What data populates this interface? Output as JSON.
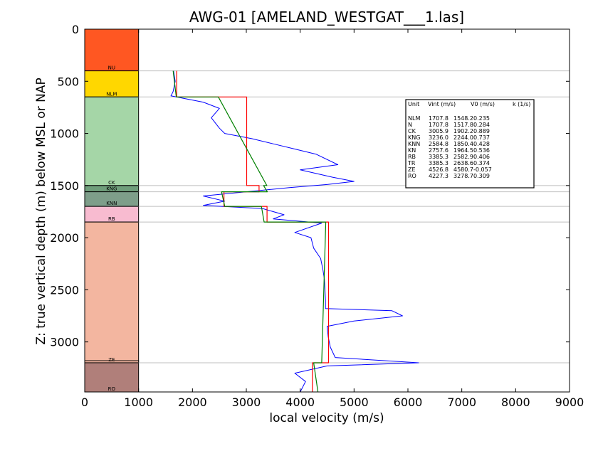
{
  "chart_data": {
    "type": "line",
    "title": "AWG-01 [AMELAND_WESTGAT___1.las]",
    "xlabel": "local velocity (m/s)",
    "ylabel": "Z: true vertical depth (m) below MSL or NAP",
    "xlim": [
      0,
      9000
    ],
    "ylim": [
      3480,
      0
    ],
    "x_ticks": [
      "0",
      "1000",
      "2000",
      "3000",
      "4000",
      "5000",
      "6000",
      "7000",
      "8000",
      "9000"
    ],
    "y_ticks": [
      "0",
      "500",
      "1000",
      "1500",
      "2000",
      "2500",
      "3000"
    ],
    "grid": "horizontal lines at formation boundaries",
    "legend_position": "top-right",
    "colors": {
      "log_line": "#0000ff",
      "interval_velocity": "#ff0000",
      "v0k_model": "#008000",
      "boundary_line": "#bfbfbf"
    },
    "formations": [
      {
        "label": "NU",
        "top": 0,
        "base": 400,
        "color": "#ff5722"
      },
      {
        "label": "NLM",
        "top": 400,
        "base": 650,
        "color": "#ffd700"
      },
      {
        "label": "CK",
        "top": 650,
        "base": 1500,
        "color": "#a5d6a7"
      },
      {
        "label": "KNG",
        "top": 1500,
        "base": 1560,
        "color": "#6f9e7b"
      },
      {
        "label": "KNN",
        "top": 1560,
        "base": 1700,
        "color": "#7e9e8a"
      },
      {
        "label": "RB",
        "top": 1700,
        "base": 1850,
        "color": "#f8bbd0"
      },
      {
        "label": "",
        "top": 1850,
        "base": 3200,
        "color": "#f3b6a0"
      },
      {
        "label": "ZE",
        "top": 3180,
        "base": 3200,
        "color": "#f3b6a0"
      },
      {
        "label": "RO",
        "top": 3200,
        "base": 3480,
        "color": "#b07f7a"
      }
    ],
    "boundary_depths": [
      400,
      650,
      1500,
      1560,
      1700,
      1850,
      3200
    ],
    "legend": {
      "header": [
        "Unit",
        "Vint (m/s)",
        "V0 (m/s)",
        "k (1/s)"
      ],
      "rows": [
        [
          "NLM",
          "1707.8",
          "1548.2",
          "0.235"
        ],
        [
          "N",
          "1707.8",
          "1517.8",
          "0.284"
        ],
        [
          "CK",
          "3005.9",
          "1902.2",
          "0.889"
        ],
        [
          "KNG",
          "3236.0",
          "2244.0",
          "0.737"
        ],
        [
          "KNN",
          "2584.8",
          "1850.4",
          "0.428"
        ],
        [
          "KN",
          "2757.6",
          "1964.5",
          "0.536"
        ],
        [
          "RB",
          "3385.3",
          "2582.9",
          "0.406"
        ],
        [
          "TR",
          "3385.3",
          "2638.6",
          "0.374"
        ],
        [
          "ZE",
          "4526.8",
          "4580.7",
          "-0.057"
        ],
        [
          "RO",
          "4227.3",
          "3278.7",
          "0.309"
        ]
      ]
    },
    "series": [
      {
        "color": "#0000ff",
        "points": [
          [
            1650,
            400
          ],
          [
            1680,
            500
          ],
          [
            1640,
            600
          ],
          [
            1600,
            640
          ],
          [
            1800,
            660
          ],
          [
            2200,
            700
          ],
          [
            2500,
            760
          ],
          [
            2350,
            850
          ],
          [
            2500,
            950
          ],
          [
            2600,
            1000
          ],
          [
            3100,
            1050
          ],
          [
            3500,
            1100
          ],
          [
            3900,
            1150
          ],
          [
            4300,
            1200
          ],
          [
            4700,
            1300
          ],
          [
            4000,
            1350
          ],
          [
            4600,
            1420
          ],
          [
            5000,
            1460
          ],
          [
            4500,
            1490
          ],
          [
            3800,
            1520
          ],
          [
            3000,
            1560
          ],
          [
            2200,
            1600
          ],
          [
            2600,
            1650
          ],
          [
            2200,
            1690
          ],
          [
            3300,
            1720
          ],
          [
            3700,
            1780
          ],
          [
            3500,
            1820
          ],
          [
            4400,
            1860
          ],
          [
            3900,
            1950
          ],
          [
            4200,
            2000
          ],
          [
            4250,
            2100
          ],
          [
            4380,
            2200
          ],
          [
            4420,
            2300
          ],
          [
            4450,
            2400
          ],
          [
            4460,
            2500
          ],
          [
            4470,
            2600
          ],
          [
            4470,
            2680
          ],
          [
            5700,
            2700
          ],
          [
            5900,
            2750
          ],
          [
            5000,
            2800
          ],
          [
            4500,
            2850
          ],
          [
            4520,
            2950
          ],
          [
            4560,
            3050
          ],
          [
            4650,
            3150
          ],
          [
            6200,
            3200
          ],
          [
            4500,
            3230
          ],
          [
            3900,
            3300
          ],
          [
            4100,
            3380
          ],
          [
            4000,
            3480
          ]
        ]
      },
      {
        "color": "#ff0000",
        "points": [
          [
            1708,
            400
          ],
          [
            1708,
            650
          ],
          [
            3006,
            650
          ],
          [
            3006,
            1500
          ],
          [
            3236,
            1500
          ],
          [
            3236,
            1560
          ],
          [
            2585,
            1560
          ],
          [
            2585,
            1700
          ],
          [
            3385,
            1700
          ],
          [
            3385,
            1850
          ],
          [
            4527,
            1850
          ],
          [
            4527,
            3200
          ],
          [
            4227,
            3200
          ],
          [
            4227,
            3480
          ]
        ]
      },
      {
        "color": "#008000",
        "points": [
          [
            1642,
            400
          ],
          [
            1700,
            650
          ],
          [
            2480,
            650
          ],
          [
            3380,
            1500
          ],
          [
            3320,
            1500
          ],
          [
            3390,
            1560
          ],
          [
            2540,
            1560
          ],
          [
            2600,
            1700
          ],
          [
            3280,
            1700
          ],
          [
            3330,
            1850
          ],
          [
            4475,
            1850
          ],
          [
            4400,
            3200
          ],
          [
            4250,
            3200
          ],
          [
            4330,
            3480
          ]
        ]
      }
    ]
  }
}
